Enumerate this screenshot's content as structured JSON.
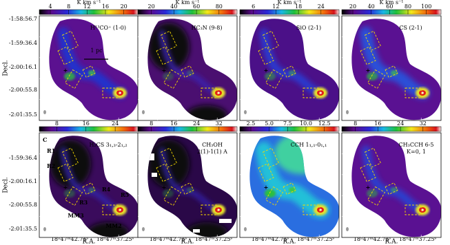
{
  "axes": {
    "y_label": "Decl.",
    "x_label": "R.A.",
    "row1_yticks": [
      "-1:58:56.7",
      "-1:59:36.4",
      "-2:00:16.1",
      "-2:00:55.8",
      "-2:01:35.5"
    ],
    "row2_yticks": [
      "-1:59:36.4",
      "-2:00:16.1",
      "-2:00:55.8",
      "-2:01:35.5"
    ],
    "xticks": [
      "18ʰ47ᵐ42.71ˢ",
      "18ʰ47ᵐ37.25ˢ"
    ]
  },
  "colorbar_unit": "K km s⁻¹",
  "panels": [
    {
      "label": [
        "H¹³CO⁺ (1-0)"
      ],
      "cbar_ticks": [
        "4",
        "8",
        "12",
        "16",
        "20"
      ]
    },
    {
      "label": [
        "HC₃N (9-8)"
      ],
      "cbar_ticks": [
        "20",
        "40",
        "60",
        "80"
      ]
    },
    {
      "label": [
        "SiO (2-1)"
      ],
      "cbar_ticks": [
        "6",
        "12",
        "18",
        "24"
      ]
    },
    {
      "label": [
        "CS (2-1)"
      ],
      "cbar_ticks": [
        "20",
        "40",
        "60",
        "80",
        "100"
      ]
    },
    {
      "label": [
        "H₂CS 3₁,₃-2₁,₂"
      ],
      "cbar_ticks": [
        "8",
        "16",
        "24"
      ]
    },
    {
      "label": [
        "CH₃OH",
        "2(1)-1(1) A"
      ],
      "cbar_ticks": [
        "8",
        "16",
        "24",
        "32"
      ]
    },
    {
      "label": [
        "CCH 1₁,₁-0₁,₁"
      ],
      "cbar_ticks": [
        "2.5",
        "5.0",
        "7.5",
        "10.0",
        "12.5"
      ]
    },
    {
      "label": [
        "CH₃CCH 6-5",
        "K=0, 1"
      ],
      "cbar_ticks": [
        "8",
        "16",
        "24",
        "32"
      ]
    }
  ],
  "annotations": {
    "scale_bar": "1 pc",
    "region_letter": "C",
    "regions": [
      "R1",
      "R2",
      "R3",
      "R4",
      "R5"
    ],
    "cores": [
      "MM3",
      "MM2"
    ]
  }
}
